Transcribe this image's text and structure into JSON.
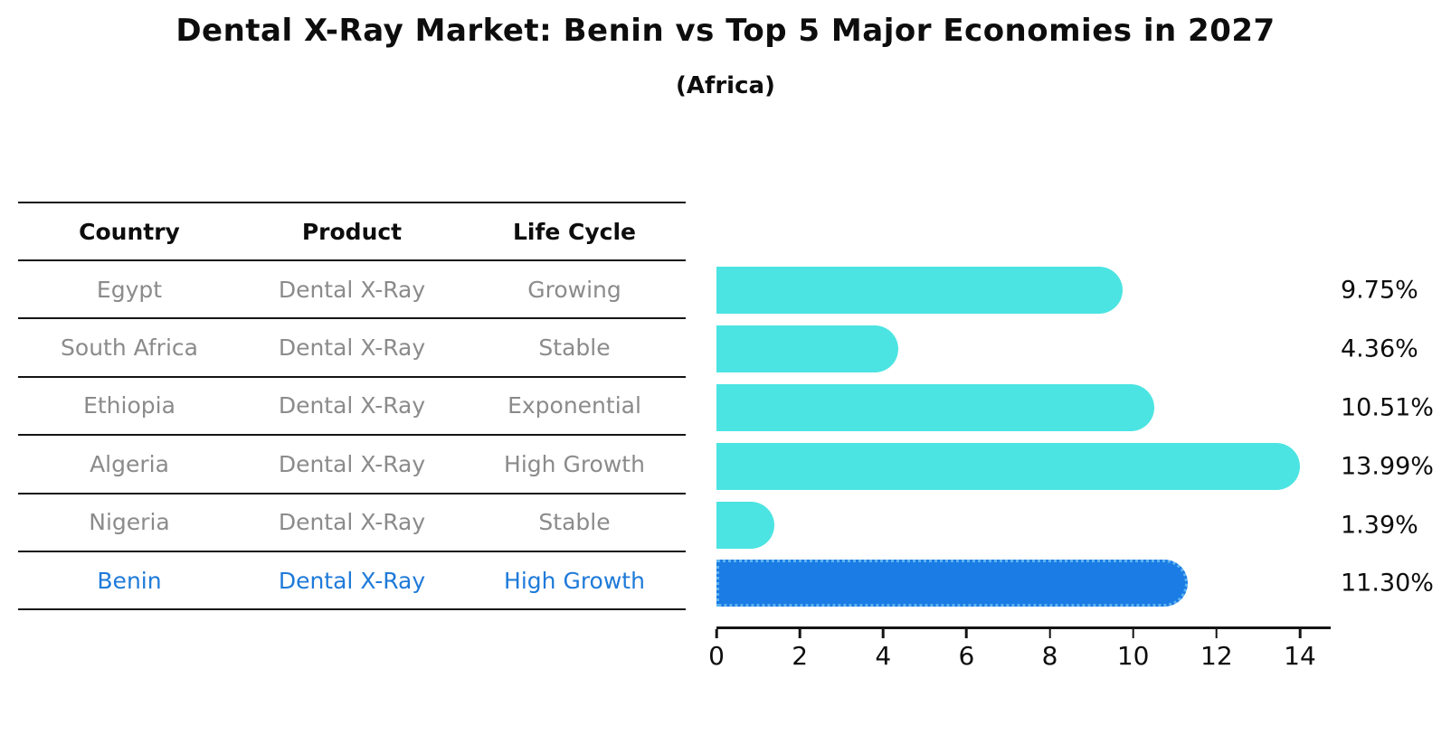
{
  "chart_title": "Dental X-Ray Market: Benin vs Top 5 Major Economies in 2027",
  "chart_subtitle": "(Africa)",
  "table": {
    "headers": [
      "Country",
      "Product",
      "Life Cycle"
    ],
    "rows": [
      {
        "country": "Egypt",
        "product": "Dental X-Ray",
        "life_cycle": "Growing",
        "highlight": false
      },
      {
        "country": "South Africa",
        "product": "Dental X-Ray",
        "life_cycle": "Stable",
        "highlight": false
      },
      {
        "country": "Ethiopia",
        "product": "Dental X-Ray",
        "life_cycle": "Exponential",
        "highlight": false
      },
      {
        "country": "Algeria",
        "product": "Dental X-Ray",
        "life_cycle": "High Growth",
        "highlight": false
      },
      {
        "country": "Nigeria",
        "product": "Dental X-Ray",
        "life_cycle": "Stable",
        "highlight": false
      },
      {
        "country": "Benin",
        "product": "Dental X-Ray",
        "life_cycle": "High Growth",
        "highlight": true
      }
    ]
  },
  "chart_data": {
    "type": "bar",
    "orientation": "horizontal",
    "title": "Dental X-Ray Market: Benin vs Top 5 Major Economies in 2027",
    "subtitle": "(Africa)",
    "categories": [
      "Egypt",
      "South Africa",
      "Ethiopia",
      "Algeria",
      "Nigeria",
      "Benin"
    ],
    "values": [
      9.75,
      4.36,
      10.51,
      13.99,
      1.39,
      11.3
    ],
    "value_labels": [
      "9.75%",
      "4.36%",
      "10.51%",
      "13.99%",
      "1.39%",
      "11.30%"
    ],
    "highlight_index": 5,
    "xticks": [
      0,
      2,
      4,
      6,
      8,
      10,
      12,
      14
    ],
    "xlim": [
      0,
      14.7
    ],
    "grid": false,
    "legend": "none",
    "colors": {
      "default_bar": "#4be4e2",
      "highlight_bar": "#1b7ce5",
      "highlight_border": "#5fb4f0",
      "highlight_text": "#1e7ad9",
      "table_text": "#8b8b8b",
      "heading_text": "#0d0d0d"
    }
  }
}
